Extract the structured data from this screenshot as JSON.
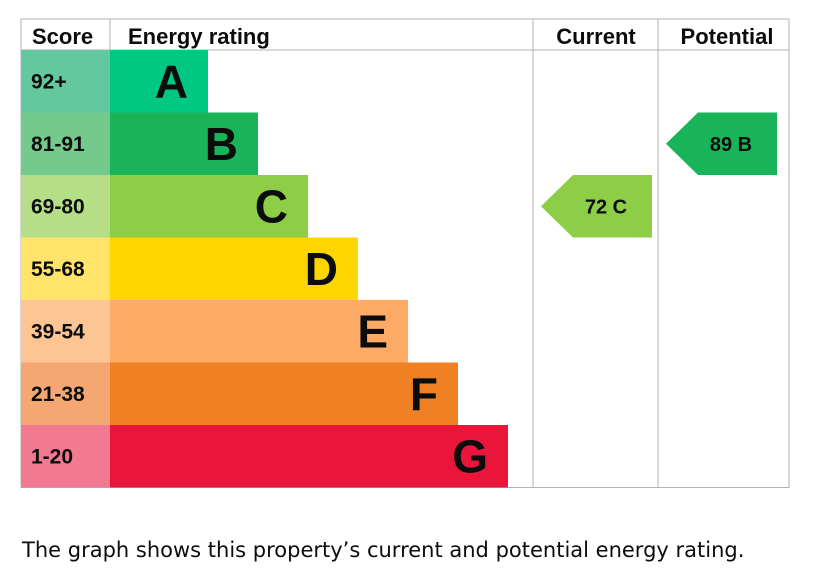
{
  "chart_data": {
    "type": "bar",
    "headers": {
      "score": "Score",
      "rating": "Energy rating",
      "current": "Current",
      "potential": "Potential"
    },
    "bands": [
      {
        "score": "92+",
        "letter": "A",
        "color": "#00c781",
        "score_bg": "#63c8a0"
      },
      {
        "score": "81-91",
        "letter": "B",
        "color": "#19b459",
        "score_bg": "#74c98d"
      },
      {
        "score": "69-80",
        "letter": "C",
        "color": "#8dce46",
        "score_bg": "#b6de87"
      },
      {
        "score": "55-68",
        "letter": "D",
        "color": "#ffd500",
        "score_bg": "#ffe36a"
      },
      {
        "score": "39-54",
        "letter": "E",
        "color": "#fcaa65",
        "score_bg": "#fdc494"
      },
      {
        "score": "21-38",
        "letter": "F",
        "color": "#ef8023",
        "score_bg": "#f4a772"
      },
      {
        "score": "1-20",
        "letter": "G",
        "color": "#e9153b",
        "score_bg": "#f27a90"
      }
    ],
    "current": {
      "value": 72,
      "letter": "C",
      "label": "72 C",
      "color": "#8dce46"
    },
    "potential": {
      "value": 89,
      "letter": "B",
      "label": "89 B",
      "color": "#19b459"
    }
  },
  "caption": "The graph shows this property’s current and potential energy rating."
}
